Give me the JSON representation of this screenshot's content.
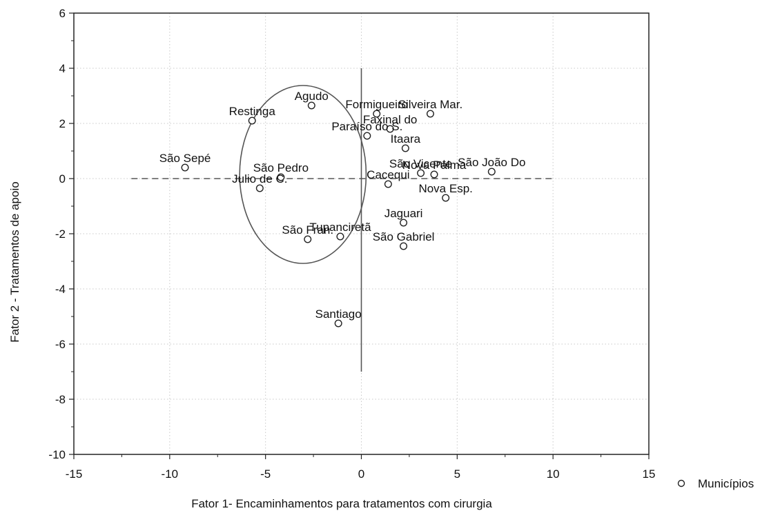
{
  "chart_data": {
    "type": "scatter",
    "xlabel": "Fator 1- Encaminhamentos para tratamentos com cirurgia",
    "ylabel": "Fator 2 - Tratamentos de apoio",
    "xlim": [
      -15,
      15
    ],
    "ylim": [
      -10,
      6
    ],
    "xticks": [
      "-15",
      "-10",
      "-5",
      "0",
      "5",
      "10",
      "15"
    ],
    "yticks": [
      "-10",
      "-8",
      "-6",
      "-4",
      "-2",
      "0",
      "2",
      "4",
      "6"
    ],
    "grid": true,
    "legend": {
      "placement": "right",
      "entries": [
        "Municípios"
      ]
    },
    "series": [
      {
        "name": "Municípios",
        "points": [
          {
            "label": "São Sepé",
            "x": -9.2,
            "y": 0.4
          },
          {
            "label": "Restinga",
            "x": -5.7,
            "y": 2.1
          },
          {
            "label": "Agudo",
            "x": -2.6,
            "y": 2.65
          },
          {
            "label": "São Pedro",
            "x": -4.2,
            "y": 0.05
          },
          {
            "label": "Julio de C.",
            "x": -5.3,
            "y": -0.35
          },
          {
            "label": "São Fran.",
            "x": -2.8,
            "y": -2.2
          },
          {
            "label": "Tupanciretã",
            "x": -1.1,
            "y": -2.1
          },
          {
            "label": "Santiago",
            "x": -1.2,
            "y": -5.25
          },
          {
            "label": "Formigueiro",
            "x": 0.8,
            "y": 2.35
          },
          {
            "label": "Faxinal do",
            "x": 1.5,
            "y": 1.8
          },
          {
            "label": "Paraíso do S.",
            "x": 0.3,
            "y": 1.55
          },
          {
            "label": "Silveira Mar.",
            "x": 3.6,
            "y": 2.35
          },
          {
            "label": "Itaara",
            "x": 2.3,
            "y": 1.1
          },
          {
            "label": "São Vicente",
            "x": 3.1,
            "y": 0.2
          },
          {
            "label": "Nova Palma",
            "x": 3.8,
            "y": 0.15
          },
          {
            "label": "São João Do",
            "x": 6.8,
            "y": 0.25
          },
          {
            "label": "Cacequi",
            "x": 1.4,
            "y": -0.2
          },
          {
            "label": "Nova Esp.",
            "x": 4.4,
            "y": -0.7
          },
          {
            "label": "Jaguari",
            "x": 2.2,
            "y": -1.6
          },
          {
            "label": "São Gabriel",
            "x": 2.2,
            "y": -2.45
          }
        ]
      }
    ]
  }
}
